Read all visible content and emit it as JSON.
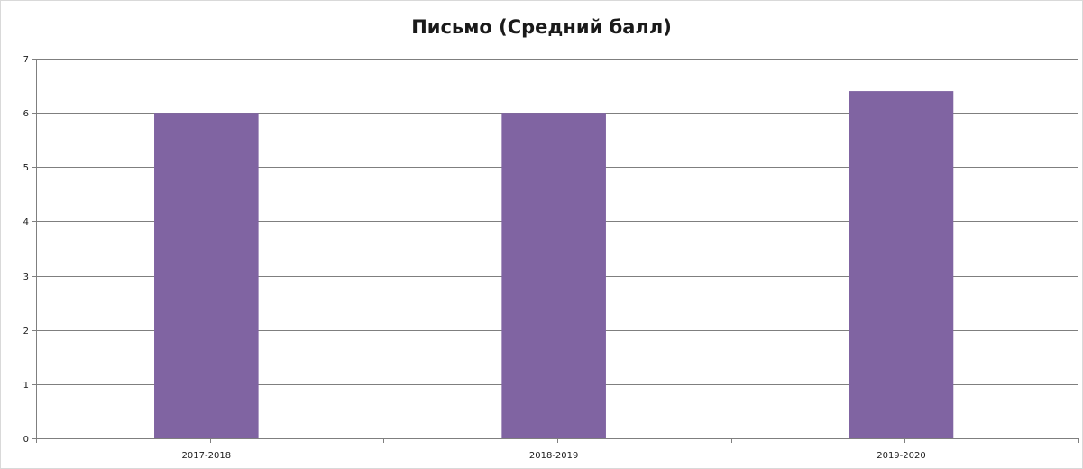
{
  "chart_data": {
    "type": "bar",
    "title": "Письмо (Средний балл)",
    "categories": [
      "2017-2018",
      "2018-2019",
      "2019-2020"
    ],
    "values": [
      6.0,
      6.0,
      6.4
    ],
    "ylim": [
      0,
      7
    ],
    "yticks": [
      0,
      1,
      2,
      3,
      4,
      5,
      6,
      7
    ],
    "grid": true,
    "legend": "none",
    "xlabel": "",
    "ylabel": "",
    "bar_color": "#8064A2",
    "grid_color": "#7f7f7f"
  }
}
